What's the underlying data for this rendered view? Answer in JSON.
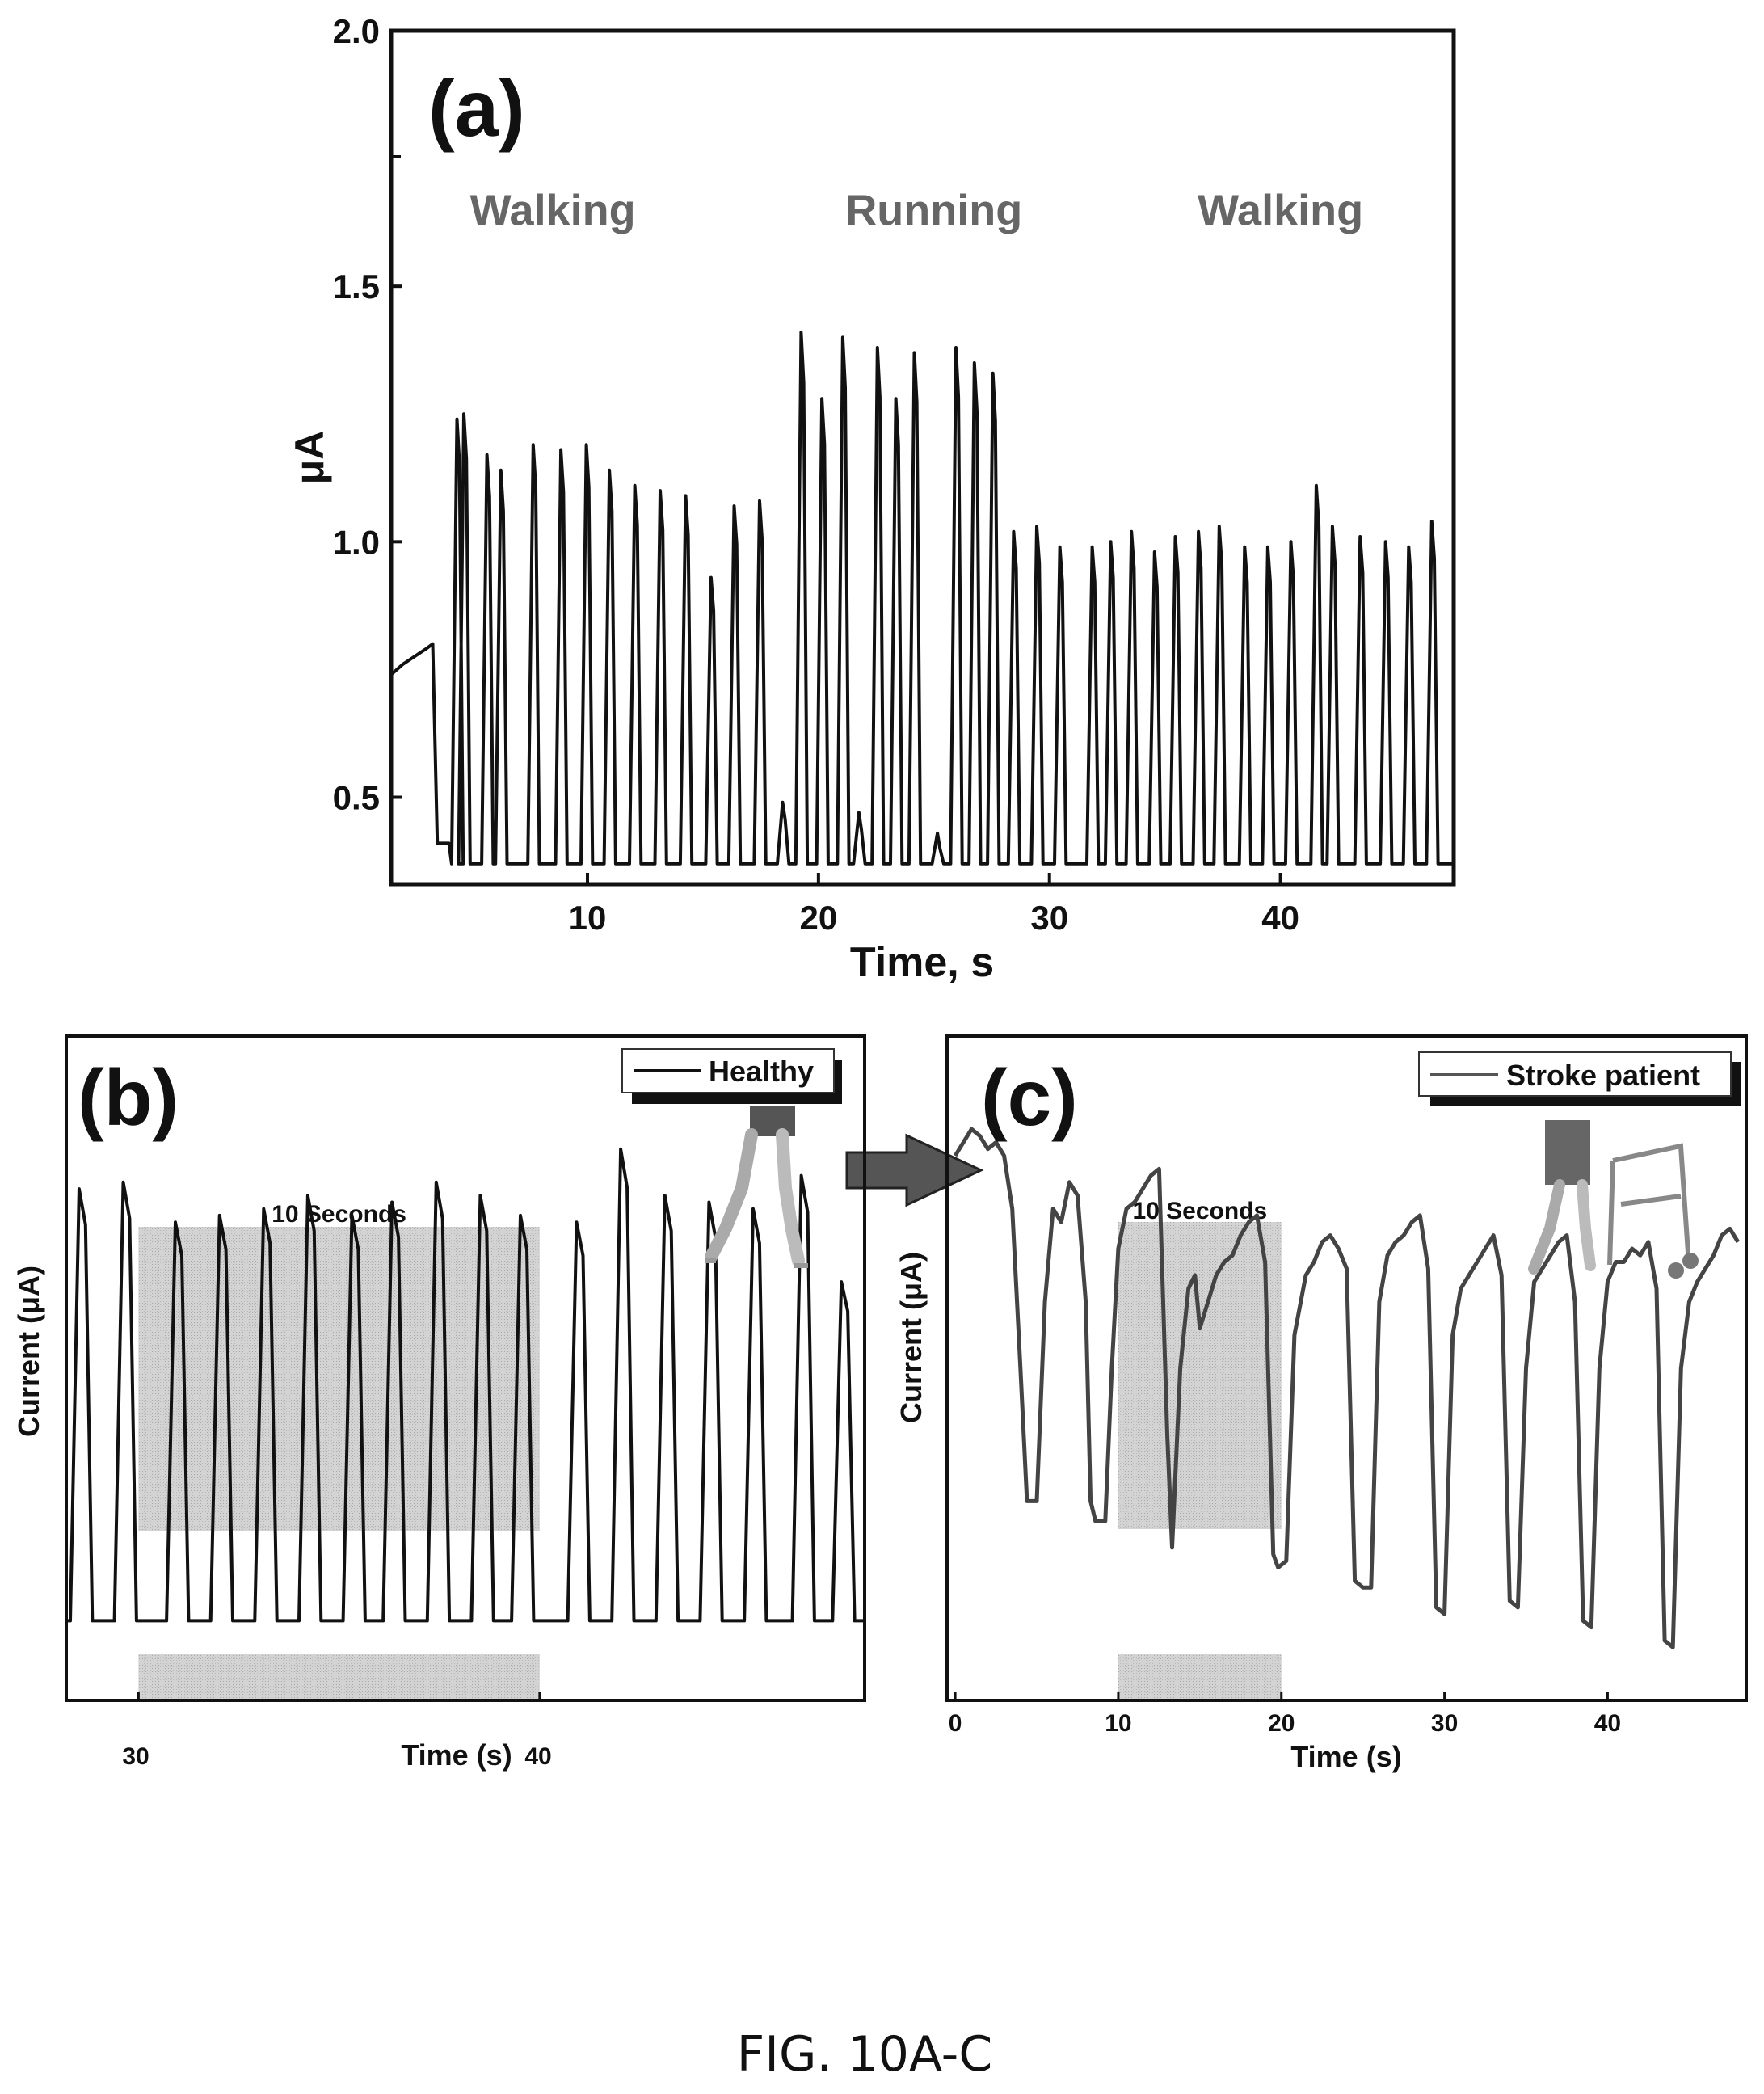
{
  "figure": {
    "caption": "FIG. 10A-C"
  },
  "chart_data": [
    {
      "panel": "(a)",
      "type": "line",
      "xlabel": "Time, s",
      "ylabel": "μA",
      "xlim": [
        1.5,
        47.5
      ],
      "ylim": [
        0.33,
        2.0
      ],
      "x_ticks": [
        10,
        20,
        30,
        40
      ],
      "x_tick_labels": [
        "10",
        "20",
        "30",
        "40"
      ],
      "y_ticks": [
        0.5,
        1.0,
        1.5,
        2.0
      ],
      "y_tick_labels": [
        "0.5",
        "1.0",
        "1.5",
        "2.0"
      ],
      "annotations": [
        "Walking",
        "Running",
        "Walking"
      ],
      "annotation_x": [
        8.5,
        25,
        40
      ],
      "annotation_y": 1.62,
      "baseline": 0.37,
      "initial_segment": {
        "x": [
          1.5,
          2.0,
          3.0,
          3.3,
          3.5,
          4.0
        ],
        "y": [
          0.74,
          0.76,
          0.79,
          0.8,
          0.41,
          0.41
        ]
      },
      "peak_times": [
        4.4,
        4.7,
        5.7,
        6.3,
        7.7,
        8.9,
        10.0,
        11.0,
        12.1,
        13.2,
        14.3,
        15.4,
        16.4,
        17.5,
        18.5,
        19.3,
        20.2,
        21.1,
        21.8,
        22.6,
        23.4,
        24.2,
        25.2,
        26.0,
        26.8,
        27.6,
        28.5,
        29.5,
        30.5,
        31.9,
        32.7,
        33.6,
        34.6,
        35.5,
        36.5,
        37.4,
        38.5,
        39.5,
        40.5,
        41.6,
        42.3,
        43.5,
        44.6,
        45.6,
        46.6
      ],
      "peak_values": [
        1.24,
        1.25,
        1.17,
        1.14,
        1.19,
        1.18,
        1.19,
        1.14,
        1.11,
        1.1,
        1.09,
        0.93,
        1.07,
        1.08,
        0.49,
        1.41,
        1.28,
        1.4,
        0.47,
        1.38,
        1.28,
        1.37,
        0.43,
        1.38,
        1.35,
        1.33,
        1.02,
        1.03,
        0.99,
        0.99,
        1.0,
        1.02,
        0.98,
        1.01,
        1.02,
        1.03,
        0.99,
        0.99,
        1.0,
        1.11,
        1.03,
        1.01,
        1.0,
        0.99,
        1.04
      ]
    },
    {
      "panel": "(b)",
      "type": "line",
      "xlabel": "Time (s)",
      "ylabel": "Current (μA)",
      "xlim": [
        28.2,
        48.1
      ],
      "ylim": [
        0,
        1
      ],
      "x_ticks": [
        30,
        40
      ],
      "x_tick_labels": [
        "30",
        "40"
      ],
      "series": [
        {
          "name": "Healthy"
        }
      ],
      "highlight": {
        "x_start": 30,
        "x_end": 40,
        "label": "10 Seconds"
      },
      "baseline": 0.12,
      "peak_times": [
        28.6,
        29.7,
        31.0,
        32.1,
        33.2,
        34.3,
        35.4,
        36.4,
        37.5,
        38.6,
        39.6,
        41.0,
        42.1,
        43.2,
        44.3,
        45.4,
        46.6,
        47.6
      ],
      "peak_values": [
        0.77,
        0.78,
        0.72,
        0.73,
        0.74,
        0.76,
        0.73,
        0.75,
        0.78,
        0.76,
        0.73,
        0.72,
        0.83,
        0.76,
        0.75,
        0.74,
        0.79,
        0.63
      ]
    },
    {
      "panel": "(c)",
      "type": "line",
      "xlabel": "Time (s)",
      "ylabel": "Current (μA)",
      "xlim": [
        -0.5,
        48.5
      ],
      "ylim": [
        0,
        1
      ],
      "x_ticks": [
        0,
        10,
        20,
        30,
        40
      ],
      "x_tick_labels": [
        "0",
        "10",
        "20",
        "30",
        "40"
      ],
      "series": [
        {
          "name": "Stroke patient"
        }
      ],
      "highlight": {
        "x_start": 10,
        "x_end": 20,
        "label": "10 Seconds"
      },
      "x": [
        0,
        0.5,
        1,
        1.5,
        2,
        2.5,
        3,
        3.5,
        4,
        4.4,
        5,
        5.5,
        6,
        6.5,
        7,
        7.5,
        8,
        8.3,
        8.6,
        9.2,
        9.6,
        10,
        10.5,
        11,
        11.5,
        12,
        12.5,
        13,
        13.3,
        13.8,
        14.3,
        14.7,
        15,
        15.5,
        16,
        16.5,
        17,
        17.5,
        18,
        18.5,
        19,
        19.5,
        19.8,
        20.3,
        20.8,
        21.5,
        22,
        22.5,
        23,
        23.5,
        24,
        24.5,
        25,
        25.5,
        26,
        26.5,
        27,
        27.5,
        28,
        28.5,
        29,
        29.5,
        30,
        30.5,
        31,
        31.5,
        32,
        32.5,
        33,
        33.5,
        34,
        34.5,
        35,
        35.5,
        36,
        36.5,
        37,
        37.5,
        38,
        38.5,
        39,
        39.5,
        40,
        40.5,
        41,
        41.5,
        42,
        42.5,
        43,
        43.5,
        44,
        44.5,
        45,
        45.5,
        46,
        46.5,
        47,
        47.5,
        48
      ],
      "y": [
        0.82,
        0.84,
        0.86,
        0.85,
        0.83,
        0.84,
        0.82,
        0.74,
        0.5,
        0.3,
        0.3,
        0.6,
        0.74,
        0.72,
        0.78,
        0.76,
        0.6,
        0.3,
        0.27,
        0.27,
        0.5,
        0.68,
        0.74,
        0.75,
        0.77,
        0.79,
        0.8,
        0.4,
        0.23,
        0.5,
        0.62,
        0.64,
        0.56,
        0.6,
        0.64,
        0.66,
        0.67,
        0.7,
        0.72,
        0.73,
        0.66,
        0.22,
        0.2,
        0.21,
        0.55,
        0.64,
        0.66,
        0.69,
        0.7,
        0.68,
        0.65,
        0.18,
        0.17,
        0.17,
        0.6,
        0.67,
        0.69,
        0.7,
        0.72,
        0.73,
        0.65,
        0.14,
        0.13,
        0.55,
        0.62,
        0.64,
        0.66,
        0.68,
        0.7,
        0.64,
        0.15,
        0.14,
        0.5,
        0.63,
        0.65,
        0.67,
        0.69,
        0.7,
        0.6,
        0.12,
        0.11,
        0.5,
        0.63,
        0.66,
        0.66,
        0.68,
        0.67,
        0.69,
        0.62,
        0.09,
        0.08,
        0.5,
        0.6,
        0.63,
        0.65,
        0.67,
        0.7,
        0.71,
        0.69
      ]
    }
  ]
}
